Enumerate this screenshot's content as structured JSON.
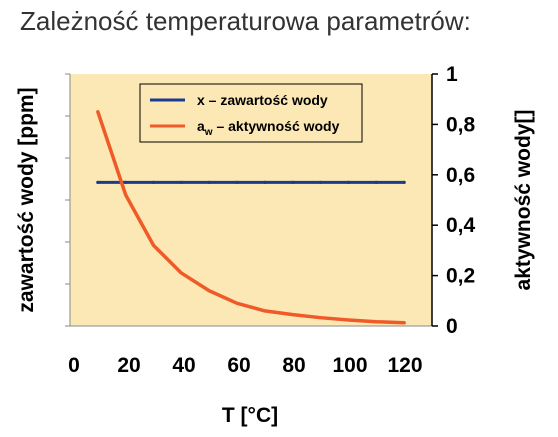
{
  "page": {
    "title": "Zależność temperaturowa parametrów:"
  },
  "chart_data": {
    "type": "line",
    "title": "",
    "xlabel": "T [°C]",
    "ylabel_left": "zawartość wody [ppm]",
    "ylabel_right": "aktywność wody[]",
    "xlim": [
      0,
      130
    ],
    "ylim_right": [
      0,
      1
    ],
    "x_ticks": [
      "0",
      "20",
      "40",
      "60",
      "80",
      "100",
      "120"
    ],
    "x_tick_values": [
      0,
      20,
      40,
      60,
      80,
      100,
      120
    ],
    "y_right_ticks": [
      "0",
      "0,2",
      "0,4",
      "0,6",
      "0,8",
      "1"
    ],
    "y_right_tick_values": [
      0,
      0.2,
      0.4,
      0.6,
      0.8,
      1.0
    ],
    "left_axis_tick_count": 6,
    "grid": false,
    "legend_position": "top",
    "plot_background": "#FBE8B4",
    "series": [
      {
        "name": "x – zawartość wody",
        "color": "#1F3A8A",
        "axis": "right-scale",
        "x": [
          10,
          20,
          30,
          40,
          50,
          60,
          70,
          80,
          90,
          100,
          110,
          120
        ],
        "y": [
          0.57,
          0.57,
          0.57,
          0.57,
          0.57,
          0.57,
          0.57,
          0.57,
          0.57,
          0.57,
          0.57,
          0.57
        ]
      },
      {
        "name": "a",
        "name_subscript": "w",
        "name_suffix": " – aktywność wody",
        "color": "#F05A28",
        "axis": "right-scale",
        "x": [
          10,
          20,
          30,
          40,
          50,
          60,
          70,
          80,
          90,
          100,
          110,
          120
        ],
        "y": [
          0.85,
          0.52,
          0.32,
          0.21,
          0.14,
          0.09,
          0.06,
          0.045,
          0.033,
          0.024,
          0.017,
          0.013
        ]
      }
    ]
  }
}
